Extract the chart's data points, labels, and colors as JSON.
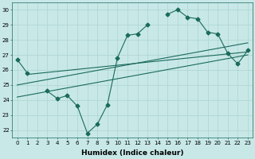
{
  "xlabel": "Humidex (Indice chaleur)",
  "ylabel": "",
  "background_color": "#c8e8e8",
  "grid_color": "#b0d8d0",
  "line_color": "#1a6a5a",
  "x_values": [
    0,
    1,
    2,
    3,
    4,
    5,
    6,
    7,
    8,
    9,
    10,
    11,
    12,
    13,
    14,
    15,
    16,
    17,
    18,
    19,
    20,
    21,
    22,
    23
  ],
  "series1": [
    26.7,
    25.8,
    null,
    24.6,
    24.1,
    24.3,
    23.6,
    21.8,
    22.4,
    23.7,
    26.8,
    28.3,
    28.4,
    29.0,
    null,
    29.7,
    30.0,
    29.5,
    29.4,
    28.5,
    28.4,
    27.1,
    26.4,
    27.3
  ],
  "trend_line1_x": [
    0,
    23
  ],
  "trend_line1_y": [
    25.0,
    27.8
  ],
  "trend_line2_x": [
    0,
    23
  ],
  "trend_line2_y": [
    24.2,
    27.0
  ],
  "trend_line3_x": [
    1,
    23
  ],
  "trend_line3_y": [
    25.7,
    27.2
  ],
  "ylim": [
    21.5,
    30.5
  ],
  "xlim": [
    -0.5,
    23.5
  ],
  "yticks": [
    22,
    23,
    24,
    25,
    26,
    27,
    28,
    29,
    30
  ],
  "xticks": [
    0,
    1,
    2,
    3,
    4,
    5,
    6,
    7,
    8,
    9,
    10,
    11,
    12,
    13,
    14,
    15,
    16,
    17,
    18,
    19,
    20,
    21,
    22,
    23
  ],
  "marker": "D",
  "markersize": 2.5,
  "linewidth": 0.8,
  "tick_fontsize": 5.0,
  "label_fontsize": 6.5
}
